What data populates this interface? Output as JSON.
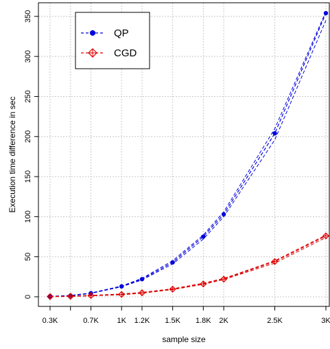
{
  "chart_data": {
    "type": "line",
    "title": "",
    "xlabel": "sample size",
    "ylabel": "Execution time difference in sec",
    "x_ticks": [
      {
        "value": 300,
        "label": "0.3K"
      },
      {
        "value": 700,
        "label": "0.7K"
      },
      {
        "value": 1000,
        "label": "1K"
      },
      {
        "value": 1200,
        "label": "1.2K"
      },
      {
        "value": 1500,
        "label": "1.5K"
      },
      {
        "value": 1800,
        "label": "1.8K"
      },
      {
        "value": 2000,
        "label": "2K"
      },
      {
        "value": 2500,
        "label": "2.5K"
      },
      {
        "value": 3000,
        "label": "3K"
      }
    ],
    "x_minor_ticks": [
      500
    ],
    "y_ticks": [
      0,
      50,
      100,
      150,
      200,
      250,
      300,
      350
    ],
    "xlim": [
      300,
      3000
    ],
    "ylim": [
      0,
      355
    ],
    "grid": true,
    "legend_position": "top-left",
    "x": [
      300,
      500,
      700,
      1000,
      1200,
      1500,
      1800,
      2000,
      2500,
      3000
    ],
    "series": [
      {
        "name": "QP",
        "color": "#0000dd",
        "marker": "filled-circle",
        "values": [
          0.5,
          1.5,
          4.5,
          13,
          22,
          43,
          75,
          103,
          204,
          354
        ],
        "band_upper": [
          0.6,
          1.7,
          4.8,
          13.5,
          23,
          45,
          77,
          106,
          210,
          356
        ],
        "band_lower": [
          0.4,
          1.3,
          4.2,
          12.5,
          21,
          41,
          72,
          100,
          196,
          345
        ]
      },
      {
        "name": "CGD",
        "color": "#dd0000",
        "marker": "diamond-plus",
        "values": [
          0.3,
          0.6,
          1.5,
          3,
          5,
          9.5,
          16,
          22,
          44,
          76
        ],
        "band_upper": [
          0.4,
          0.8,
          1.8,
          3.5,
          5.5,
          10,
          17,
          23,
          45,
          77
        ],
        "band_lower": [
          0.2,
          0.4,
          1.2,
          2.5,
          4.5,
          9,
          15.5,
          21.5,
          42,
          74
        ]
      }
    ]
  }
}
